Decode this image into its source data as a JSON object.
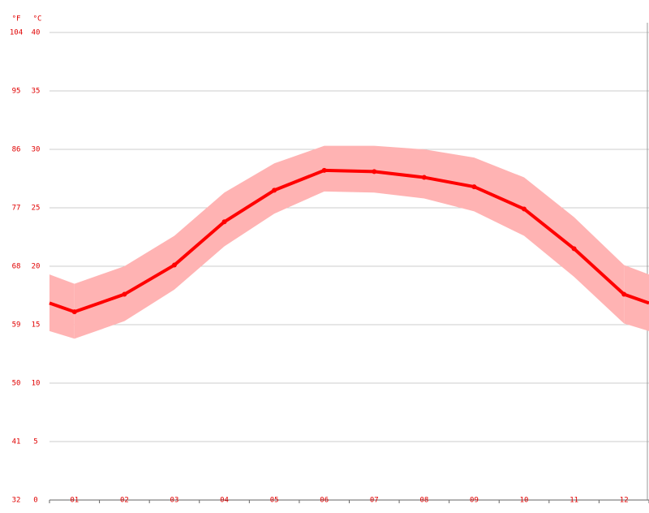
{
  "chart_data": {
    "type": "line",
    "y2_unit": "°F",
    "y_unit": "°C",
    "categories": [
      "01",
      "02",
      "03",
      "04",
      "05",
      "06",
      "07",
      "08",
      "09",
      "10",
      "11",
      "12"
    ],
    "series": [
      {
        "color": "#ff0000",
        "values": [
          16.1,
          17.6,
          20.1,
          23.8,
          26.5,
          28.2,
          28.1,
          27.6,
          26.8,
          24.9,
          21.5,
          17.6
        ]
      }
    ],
    "band": {
      "color": "#ffb3b3",
      "upper": [
        18.5,
        20.0,
        22.6,
        26.3,
        28.8,
        30.3,
        30.3,
        30.0,
        29.3,
        27.6,
        24.2,
        20.1
      ],
      "lower": [
        13.8,
        15.3,
        18.0,
        21.7,
        24.5,
        26.4,
        26.3,
        25.8,
        24.7,
        22.6,
        19.1,
        15.1
      ]
    },
    "ylim": [
      0,
      40
    ],
    "yticks": [
      0,
      5,
      10,
      15,
      20,
      25,
      30,
      35,
      40
    ],
    "y2lim": [
      32,
      104
    ],
    "y2ticks": [
      32,
      41,
      50,
      59,
      68,
      77,
      86,
      95,
      104
    ],
    "grid": true
  }
}
